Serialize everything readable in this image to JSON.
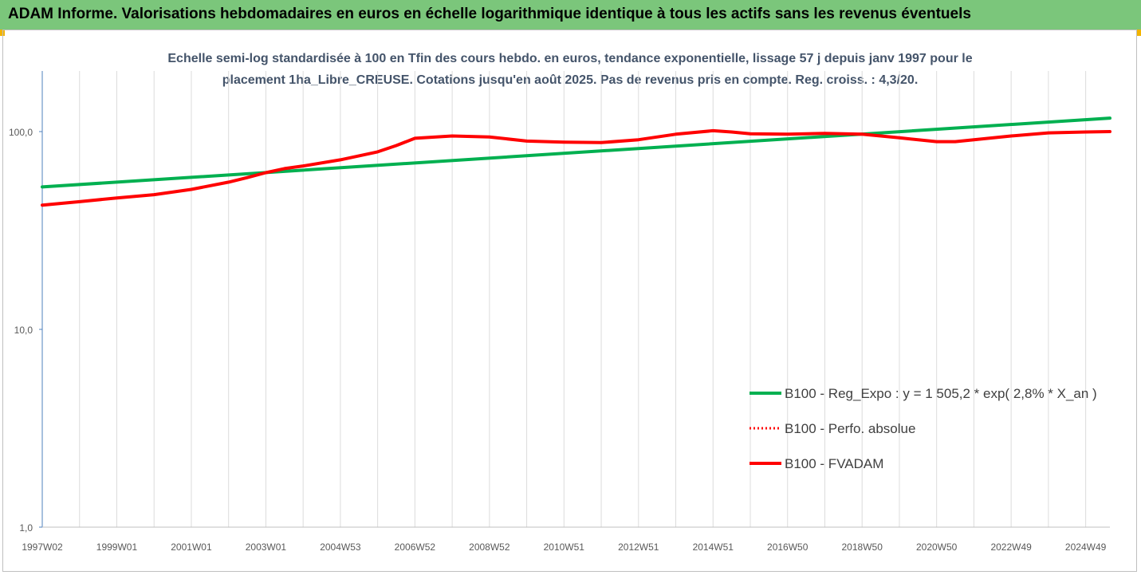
{
  "header": {
    "title": "ADAM Informe. Valorisations hebdomadaires en euros en échelle logarithmique identique à tous les actifs sans les revenus éventuels"
  },
  "chart_data": {
    "type": "line",
    "title_lines": [
      "Echelle semi-log standardisée à 100 en Tfin des cours hebdo. en euros, tendance exponentielle, lissage 57 j depuis janv 1997 pour le",
      "placement 1ha_Libre_CREUSE. Cotations jusqu'en août 2025. Pas de revenus pris en compte. Reg. croiss. : 4,3/20."
    ],
    "y_scale": "log",
    "ylim": [
      1,
      200
    ],
    "y_ticks": [
      {
        "value": 1,
        "label": "1,0"
      },
      {
        "value": 10,
        "label": "10,0"
      },
      {
        "value": 100,
        "label": "100,0"
      }
    ],
    "x_range": [
      1997.0,
      2025.65
    ],
    "x_ticks": [
      {
        "x": 1997.0,
        "label": "1997W02"
      },
      {
        "x": 1999.0,
        "label": "1999W01"
      },
      {
        "x": 2001.0,
        "label": "2001W01"
      },
      {
        "x": 2003.0,
        "label": "2003W01"
      },
      {
        "x": 2005.0,
        "label": "2004W53"
      },
      {
        "x": 2007.0,
        "label": "2006W52"
      },
      {
        "x": 2009.0,
        "label": "2008W52"
      },
      {
        "x": 2011.0,
        "label": "2010W51"
      },
      {
        "x": 2013.0,
        "label": "2012W51"
      },
      {
        "x": 2015.0,
        "label": "2014W51"
      },
      {
        "x": 2017.0,
        "label": "2016W50"
      },
      {
        "x": 2019.0,
        "label": "2018W50"
      },
      {
        "x": 2021.0,
        "label": "2020W50"
      },
      {
        "x": 2023.0,
        "label": "2022W49"
      },
      {
        "x": 2025.0,
        "label": "2024W49"
      }
    ],
    "grid_vertical": true,
    "legend_position": "right",
    "series": [
      {
        "name": "B100 - Reg_Expo : y = 1 505,2 * exp( 2,8% *  X_an )",
        "color": "#00b050",
        "style": "solid",
        "x": [
          1997.0,
          2025.65
        ],
        "y": [
          52.5,
          117
        ]
      },
      {
        "name": "B100 - Perfo. absolue",
        "color": "#ff0000",
        "style": "dotted",
        "x": [],
        "y": []
      },
      {
        "name": "B100 - FVADAM",
        "color": "#ff0000",
        "style": "solid",
        "x": [
          1997.0,
          1998.0,
          1999.0,
          2000.0,
          2001.0,
          2002.0,
          2002.5,
          2003.0,
          2003.5,
          2004.0,
          2005.0,
          2006.0,
          2006.5,
          2007.0,
          2008.0,
          2009.0,
          2010.0,
          2011.0,
          2012.0,
          2013.0,
          2014.0,
          2015.0,
          2015.5,
          2016.0,
          2017.0,
          2018.0,
          2019.0,
          2020.0,
          2021.0,
          2021.5,
          2022.0,
          2023.0,
          2024.0,
          2025.0,
          2025.65
        ],
        "y": [
          42.5,
          44.2,
          46.2,
          48.0,
          51.0,
          55.5,
          58.5,
          62.0,
          65.0,
          67.0,
          72.0,
          79.0,
          85.0,
          92.5,
          95.0,
          94.0,
          89.5,
          88.5,
          88.0,
          91.0,
          97.0,
          101.0,
          99.5,
          97.5,
          97.0,
          98.0,
          97.0,
          93.0,
          89.0,
          89.0,
          91.0,
          95.0,
          98.5,
          99.5,
          100.0
        ]
      }
    ]
  },
  "colors": {
    "header_bg": "#7bc67b",
    "corner": "#f2b400",
    "subtitle_text": "#44546a",
    "axis": "#4f81bd",
    "grid": "#dcdcdc",
    "tick_text": "#595959"
  }
}
